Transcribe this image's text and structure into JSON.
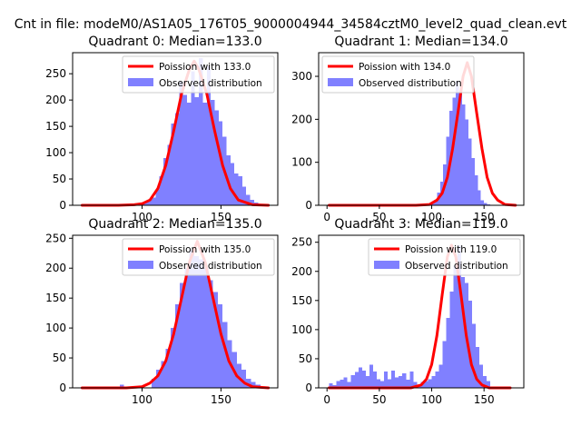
{
  "suptitle": "Cnt in file: modeM0/AS1A05_176T05_9000004944_34584cztM0_level2_quad_clean.evt",
  "colors": {
    "observed": "#8080ff",
    "poisson": "#ff0000",
    "axes": "#000000"
  },
  "chart_data": [
    {
      "type": "bar",
      "title": "Quadrant 0: Median=133.0",
      "xlim": [
        56,
        186
      ],
      "ylim": [
        0,
        290
      ],
      "xticks": [
        100,
        150
      ],
      "yticks": [
        0,
        50,
        100,
        150,
        200,
        250
      ],
      "legend": {
        "placement": "upper-right",
        "line_label": "Poission with 133.0",
        "bar_label": "Observed distribution"
      },
      "hist": {
        "edges_start": 96,
        "bin_width": 2.5,
        "values": [
          1,
          3,
          6,
          10,
          15,
          30,
          55,
          90,
          115,
          155,
          175,
          235,
          210,
          195,
          255,
          205,
          280,
          195,
          265,
          200,
          180,
          160,
          130,
          95,
          80,
          60,
          55,
          35,
          20,
          10,
          5,
          2
        ]
      },
      "poisson": {
        "x": [
          62,
          85,
          95,
          100,
          105,
          110,
          115,
          120,
          125,
          130,
          133,
          136,
          141,
          146,
          151,
          156,
          161,
          170,
          180
        ],
        "y": [
          0,
          0,
          1,
          3,
          10,
          32,
          76,
          141,
          212,
          258,
          274,
          258,
          212,
          141,
          76,
          32,
          10,
          1,
          0
        ]
      }
    },
    {
      "type": "bar",
      "title": "Quadrant 1: Median=134.0",
      "xlim": [
        -8,
        188
      ],
      "ylim": [
        0,
        355
      ],
      "xticks": [
        0,
        50,
        100,
        150
      ],
      "yticks": [
        0,
        100,
        200,
        300
      ],
      "legend": {
        "placement": "upper-left",
        "line_label": "Poission with 134.0",
        "bar_label": "Observed distribution"
      },
      "hist": {
        "edges_start": 96,
        "bin_width": 3,
        "values": [
          2,
          5,
          12,
          30,
          55,
          95,
          160,
          220,
          250,
          290,
          265,
          235,
          200,
          155,
          110,
          70,
          35,
          12,
          5,
          2
        ]
      },
      "extra_bins": [
        {
          "x": 83,
          "w": 4,
          "v": 3
        }
      ],
      "poisson": {
        "x": [
          2,
          85,
          98,
          105,
          110,
          115,
          120,
          125,
          130,
          134,
          138,
          143,
          148,
          153,
          158,
          163,
          170,
          180
        ],
        "y": [
          0,
          0,
          2,
          12,
          28,
          65,
          132,
          215,
          300,
          332,
          300,
          215,
          132,
          65,
          28,
          12,
          2,
          0
        ]
      }
    },
    {
      "type": "bar",
      "title": "Quadrant 2: Median=135.0",
      "xlim": [
        56,
        186
      ],
      "ylim": [
        0,
        255
      ],
      "xticks": [
        100,
        150
      ],
      "yticks": [
        0,
        50,
        100,
        150,
        200,
        250
      ],
      "legend": {
        "placement": "upper-right",
        "line_label": "Poission with 135.0",
        "bar_label": "Observed distribution"
      },
      "hist": {
        "edges_start": 106,
        "bin_width": 3,
        "values": [
          15,
          30,
          45,
          65,
          100,
          140,
          175,
          200,
          230,
          220,
          215,
          200,
          180,
          160,
          140,
          110,
          80,
          60,
          40,
          30,
          15,
          10,
          5
        ]
      },
      "extra_bins": [
        {
          "x": 86,
          "w": 2.5,
          "v": 5
        }
      ],
      "poisson": {
        "x": [
          62,
          90,
          100,
          105,
          110,
          115,
          120,
          125,
          130,
          135,
          140,
          145,
          150,
          155,
          160,
          165,
          170,
          180
        ],
        "y": [
          0,
          0,
          2,
          8,
          20,
          45,
          90,
          150,
          210,
          245,
          210,
          150,
          90,
          45,
          20,
          8,
          2,
          0
        ]
      }
    },
    {
      "type": "bar",
      "title": "Quadrant 3: Median=119.0",
      "xlim": [
        -8,
        188
      ],
      "ylim": [
        0,
        262
      ],
      "xticks": [
        0,
        50,
        100,
        150
      ],
      "yticks": [
        0,
        50,
        100,
        150,
        200,
        250
      ],
      "legend": {
        "placement": "upper-right",
        "line_label": "Poission with 119.0",
        "bar_label": "Observed distribution"
      },
      "hist": {
        "edges_start": 2,
        "bin_width": 3.5,
        "values": [
          8,
          5,
          12,
          14,
          18,
          10,
          22,
          27,
          35,
          30,
          20,
          40,
          28,
          15,
          12,
          28,
          15,
          30,
          18,
          20,
          25,
          14,
          28,
          10,
          5,
          10,
          12,
          15,
          20,
          28,
          40,
          80,
          120,
          165,
          210,
          245,
          190,
          180,
          150,
          110,
          70,
          40,
          20,
          12
        ]
      },
      "poisson": {
        "x": [
          2,
          80,
          90,
          95,
          100,
          105,
          110,
          115,
          119,
          123,
          128,
          133,
          138,
          143,
          148,
          155,
          175
        ],
        "y": [
          0,
          0,
          5,
          15,
          40,
          90,
          160,
          225,
          245,
          225,
          160,
          90,
          40,
          15,
          5,
          0,
          0
        ]
      }
    }
  ]
}
